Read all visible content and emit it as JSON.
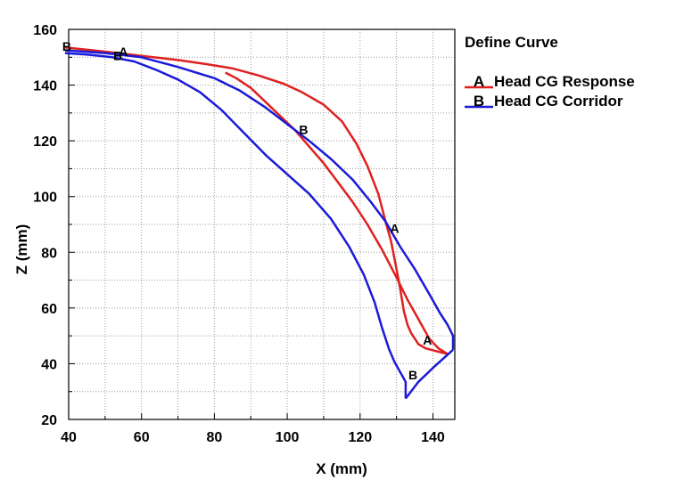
{
  "chart_data": {
    "type": "line",
    "title": "",
    "xlabel": "X (mm)",
    "ylabel": "Z (mm)",
    "xlim": [
      40,
      146
    ],
    "ylim": [
      20,
      160
    ],
    "xticks": [
      40,
      60,
      80,
      100,
      120,
      140
    ],
    "yticks": [
      20,
      40,
      60,
      80,
      100,
      120,
      140,
      160
    ],
    "grid": true,
    "legend": {
      "title": "Define Curve",
      "placement": "top-right",
      "entries": [
        {
          "marker": "A",
          "label": "Head CG Response",
          "color": "#e02020"
        },
        {
          "marker": "B",
          "label": "Head CG Corridor",
          "color": "#1a1ad8"
        }
      ]
    },
    "series": [
      {
        "name": "Head CG Response",
        "marker": "A",
        "color": "#e02020",
        "segments": [
          {
            "x": [
              39,
              50,
              60,
              70,
              78,
              85,
              92,
              99,
              104,
              110,
              115,
              119,
              122,
              125,
              127,
              128.5,
              130,
              131,
              132,
              133,
              134,
              136,
              138,
              141,
              144
            ],
            "y": [
              153.5,
              152,
              150.5,
              149,
              147.5,
              146,
              143.5,
              140.5,
              137.5,
              133,
              127,
              119,
              111,
              101,
              91,
              84,
              74,
              67,
              59,
              54,
              51,
              47,
              45.5,
              44.5,
              43.5
            ]
          },
          {
            "x": [
              83,
              86,
              90,
              94,
              98,
              102,
              106,
              110,
              114,
              118,
              122,
              126,
              130,
              133,
              136,
              139,
              141.5,
              144
            ],
            "y": [
              144.5,
              142.5,
              139,
              134,
              129,
              124,
              118,
              112,
              105,
              98,
              90,
              81,
              71,
              63,
              56,
              49,
              45.5,
              43.5
            ]
          }
        ],
        "marker_points": [
          [
            55,
            152
          ],
          [
            138.5,
            48.5
          ],
          [
            129.5,
            88.5
          ]
        ]
      },
      {
        "name": "Head CG Corridor",
        "marker": "B",
        "color": "#1a1ad8",
        "segments": [
          {
            "x": [
              39,
              50,
              60,
              70,
              80,
              87,
              94,
              100,
              106,
              112,
              118,
              123,
              127,
              131,
              135,
              139,
              142,
              144,
              145.5,
              145.5
            ],
            "y": [
              152.5,
              151.5,
              150,
              146.5,
              142.5,
              138,
              132,
              126,
              120,
              113.5,
              106,
              98,
              91,
              82,
              74,
              65,
              58,
              54,
              50,
              45
            ]
          },
          {
            "x": [
              145.5,
              140,
              136,
              132.5
            ],
            "y": [
              45,
              38.5,
              33.5,
              27.5
            ]
          },
          {
            "x": [
              132.5,
              132.5,
              129.5
            ],
            "y": [
              27.5,
              33.5,
              40.5
            ]
          },
          {
            "x": [
              129.5,
              128,
              126,
              124,
              121,
              117,
              112,
              106,
              100,
              94,
              88,
              82,
              76,
              70,
              64,
              58,
              52,
              45,
              39
            ],
            "y": [
              40.5,
              45,
              53,
              62,
              72,
              82,
              92,
              101,
              108,
              115,
              123,
              131,
              137.5,
              142,
              145.5,
              148.5,
              150,
              151,
              151.5
            ]
          }
        ],
        "marker_points": [
          [
            39.5,
            154
          ],
          [
            53.5,
            150.5
          ],
          [
            104.5,
            124
          ],
          [
            134.5,
            36
          ]
        ]
      }
    ]
  }
}
